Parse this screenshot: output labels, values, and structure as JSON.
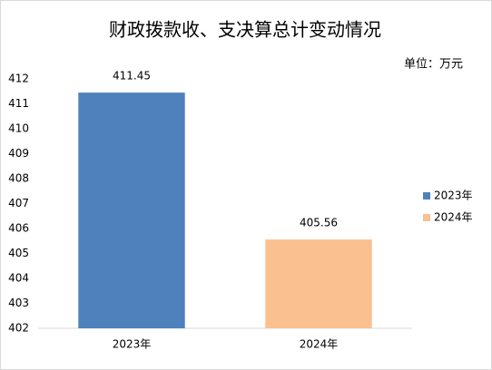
{
  "chart_data": {
    "type": "bar",
    "title": "财政拨款收、支决算总计变动情况",
    "unit_label": "单位：万元",
    "categories": [
      "2023年",
      "2024年"
    ],
    "values": [
      411.45,
      405.56
    ],
    "colors": [
      "#4f81bd",
      "#fac090"
    ],
    "ylim": [
      402,
      412
    ],
    "yticks": [
      402,
      403,
      404,
      405,
      406,
      407,
      408,
      409,
      410,
      411,
      412
    ],
    "grid": false,
    "legend": "right"
  }
}
